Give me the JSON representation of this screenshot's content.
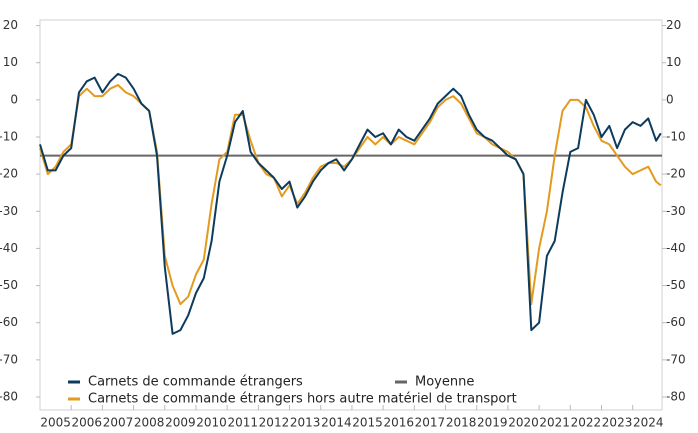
{
  "chart_data": {
    "type": "line",
    "x": [
      2005,
      2005.25,
      2005.5,
      2005.75,
      2006,
      2006.25,
      2006.5,
      2006.75,
      2007,
      2007.25,
      2007.5,
      2007.75,
      2008,
      2008.25,
      2008.5,
      2008.75,
      2009,
      2009.25,
      2009.5,
      2009.75,
      2010,
      2010.25,
      2010.5,
      2010.75,
      2011,
      2011.25,
      2011.5,
      2011.75,
      2012,
      2012.25,
      2012.5,
      2012.75,
      2013,
      2013.25,
      2013.5,
      2013.75,
      2014,
      2014.25,
      2014.5,
      2014.75,
      2015,
      2015.25,
      2015.5,
      2015.75,
      2016,
      2016.25,
      2016.5,
      2016.75,
      2017,
      2017.25,
      2017.5,
      2017.75,
      2018,
      2018.25,
      2018.5,
      2018.75,
      2019,
      2019.25,
      2019.5,
      2019.75,
      2020,
      2020.25,
      2020.5,
      2020.75,
      2021,
      2021.25,
      2021.5,
      2021.75,
      2022,
      2022.25,
      2022.5,
      2022.75,
      2023,
      2023.25,
      2023.5,
      2023.75,
      2024,
      2024.25,
      2024.5,
      2024.75,
      2024.9
    ],
    "series": [
      {
        "name": "Carnets de commande étrangers",
        "color": "#0d3b5e",
        "values": [
          -12,
          -19,
          -19,
          -15,
          -13,
          2,
          5,
          6,
          2,
          5,
          7,
          6,
          3,
          -1,
          -3,
          -15,
          -45,
          -63,
          -62,
          -58,
          -52,
          -48,
          -38,
          -22,
          -15,
          -6,
          -3,
          -14,
          -17,
          -19,
          -21,
          -24,
          -22,
          -29,
          -26,
          -22,
          -19,
          -17,
          -16,
          -19,
          -16,
          -12,
          -8,
          -10,
          -9,
          -12,
          -8,
          -10,
          -11,
          -8,
          -5,
          -1,
          1,
          3,
          1,
          -4,
          -8,
          -10,
          -11,
          -13,
          -15,
          -16,
          -20,
          -62,
          -60,
          -42,
          -38,
          -25,
          -14,
          -13,
          0,
          -4,
          -10,
          -7,
          -13,
          -8,
          -6,
          -7,
          -5,
          -11,
          -9
        ]
      },
      {
        "name": "Carnets de commande étrangers hors autre matériel de transport",
        "color": "#e39a1f",
        "values": [
          -13,
          -20,
          -18,
          -14,
          -12,
          1,
          3,
          1,
          1,
          3,
          4,
          2,
          1,
          -1,
          -3,
          -14,
          -42,
          -50,
          -55,
          -53,
          -47,
          -43,
          -28,
          -16,
          -14,
          -4,
          -4,
          -11,
          -17,
          -20,
          -21,
          -26,
          -23,
          -28,
          -25,
          -21,
          -18,
          -17,
          -17,
          -18,
          -16,
          -13,
          -10,
          -12,
          -10,
          -12,
          -10,
          -11,
          -12,
          -9,
          -6,
          -2,
          0,
          1,
          -1,
          -5,
          -9,
          -10,
          -12,
          -13,
          -14,
          -16,
          -20,
          -55,
          -40,
          -30,
          -15,
          -3,
          0,
          0,
          -2,
          -7,
          -11,
          -12,
          -15,
          -18,
          -20,
          -19,
          -18,
          -22,
          -23
        ]
      }
    ],
    "mean": {
      "name": "Moyenne",
      "value": -15,
      "color": "#666666"
    },
    "xlim": [
      2005,
      2024.94
    ],
    "xticks": [
      2005,
      2006,
      2007,
      2008,
      2009,
      2010,
      2011,
      2012,
      2013,
      2014,
      2015,
      2016,
      2017,
      2018,
      2019,
      2020,
      2021,
      2022,
      2023,
      2024
    ],
    "ylim": [
      -83.5,
      21.5
    ],
    "yticks": [
      20,
      10,
      0,
      -10,
      -20,
      -30,
      -40,
      -50,
      -60,
      -70,
      -80
    ],
    "legend": "lower left"
  }
}
